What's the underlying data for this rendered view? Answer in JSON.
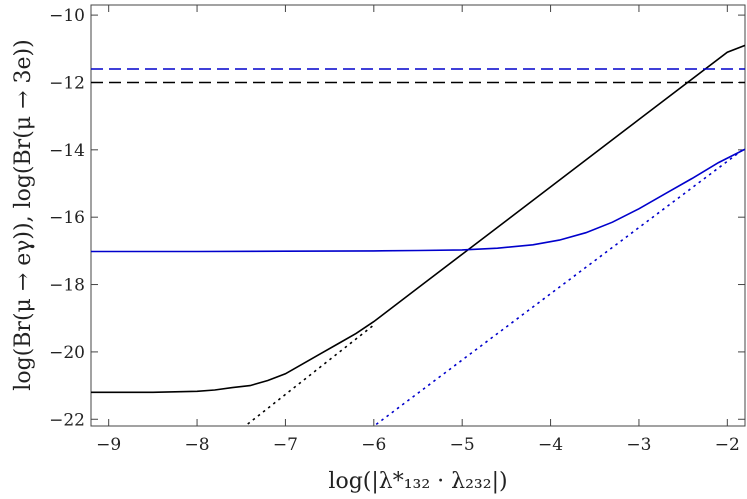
{
  "chart_data": {
    "type": "line",
    "title": "",
    "xlabel": "log(|λ*₁₃₂ · λ₂₃₂|)",
    "ylabel": "log(Br(μ → eγ)), log(Br(μ → 3e))",
    "xlim": [
      -9.2,
      -1.8
    ],
    "ylim": [
      -22.2,
      -9.7
    ],
    "xticks": [
      -9,
      -8,
      -7,
      -6,
      -5,
      -4,
      -3,
      -2
    ],
    "yticks": [
      -10,
      -12,
      -14,
      -16,
      -18,
      -20,
      -22
    ],
    "grid": false,
    "legend": "none",
    "series": [
      {
        "color": "#000000",
        "style": "solid",
        "x": [
          -9.2,
          -8.5,
          -8.0,
          -7.8,
          -7.6,
          -7.4,
          -7.2,
          -7.0,
          -6.8,
          -6.6,
          -6.4,
          -6.2,
          -6.0,
          -5.5,
          -5.0,
          -4.0,
          -3.0,
          -2.0,
          -1.8
        ],
        "y": [
          -21.2,
          -21.2,
          -21.17,
          -21.13,
          -21.06,
          -21.0,
          -20.85,
          -20.65,
          -20.35,
          -20.05,
          -19.75,
          -19.45,
          -19.1,
          -18.1,
          -17.1,
          -15.1,
          -13.1,
          -11.1,
          -10.9
        ]
      },
      {
        "color": "#000000",
        "style": "dotted",
        "x": [
          -7.6,
          -6.0
        ],
        "y": [
          -22.5,
          -19.2
        ]
      },
      {
        "color": "#0000cc",
        "style": "solid",
        "x": [
          -9.2,
          -8.0,
          -7.0,
          -6.0,
          -5.5,
          -5.0,
          -4.6,
          -4.2,
          -3.9,
          -3.6,
          -3.3,
          -3.0,
          -2.7,
          -2.4,
          -2.1,
          -1.8
        ],
        "y": [
          -17.02,
          -17.02,
          -17.01,
          -17.0,
          -16.99,
          -16.97,
          -16.92,
          -16.82,
          -16.68,
          -16.46,
          -16.15,
          -15.75,
          -15.3,
          -14.85,
          -14.38,
          -13.98
        ]
      },
      {
        "color": "#0000cc",
        "style": "dotted",
        "x": [
          -6.15,
          -1.8
        ],
        "y": [
          -22.5,
          -13.95
        ]
      },
      {
        "color": "#0000cc",
        "style": "dashed",
        "x": [
          -9.2,
          -1.8
        ],
        "y": [
          -11.6,
          -11.6
        ]
      },
      {
        "color": "#000000",
        "style": "dashed",
        "x": [
          -9.2,
          -1.8
        ],
        "y": [
          -12.0,
          -12.0
        ]
      }
    ]
  }
}
